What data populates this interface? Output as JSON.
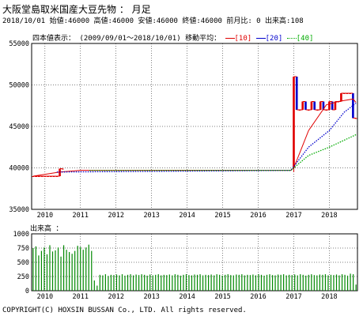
{
  "header": {
    "title": "大阪堂島取米国産大豆先物 ： 月足",
    "info": "2018/10/01 始値:46000 高値:46000 安値:46000 終値:46000 前月比: 0 出来高:108"
  },
  "legend": {
    "label": "四本値表示：",
    "period": "(2009/09/01～2018/10/01)",
    "ma_label": "移動平均：",
    "ma": [
      {
        "label": "[10]",
        "color": "#e00000"
      },
      {
        "label": "[20]",
        "color": "#0000cc"
      },
      {
        "label": "[40]",
        "color": "#00aa00"
      }
    ]
  },
  "volume_label": "出来高 ：",
  "copyright": "COPYRIGHT(C) HOXSIN BUSSAN Co., LTD. All rights reserved.",
  "colors": {
    "up": "#e00000",
    "down": "#0000cc",
    "ma10": "#e00000",
    "ma20": "#0000cc",
    "ma40": "#00aa00",
    "volume": "#008800",
    "grid": "#000000"
  },
  "chart_data": [
    {
      "type": "candlestick",
      "x_start": "2009-09",
      "x_end": "2018-10",
      "xticks": [
        "2010",
        "2011",
        "2012",
        "2013",
        "2014",
        "2015",
        "2016",
        "2017",
        "2018"
      ],
      "yticks": [
        "55000",
        "50000",
        "45000",
        "40000",
        "35000"
      ],
      "ylim": [
        35000,
        55000
      ],
      "grid": true,
      "candles": [
        {
          "date": "2009-09",
          "open": 39000,
          "high": 39000,
          "low": 39000,
          "close": 39000
        },
        {
          "date": "2009-10",
          "open": 39000,
          "high": 39000,
          "low": 39000,
          "close": 39000
        },
        {
          "date": "2009-11",
          "open": 39000,
          "high": 39000,
          "low": 39000,
          "close": 39000
        },
        {
          "date": "2009-12",
          "open": 39000,
          "high": 39000,
          "low": 39000,
          "close": 39000
        },
        {
          "date": "2010-01",
          "open": 39000,
          "high": 39000,
          "low": 39000,
          "close": 39000
        },
        {
          "date": "2010-02",
          "open": 39000,
          "high": 39000,
          "low": 39000,
          "close": 39000
        },
        {
          "date": "2010-03",
          "open": 39000,
          "high": 39000,
          "low": 39000,
          "close": 39000
        },
        {
          "date": "2010-04",
          "open": 39000,
          "high": 39000,
          "low": 39000,
          "close": 39000
        },
        {
          "date": "2010-05",
          "open": 39000,
          "high": 39000,
          "low": 39000,
          "close": 39000
        },
        {
          "date": "2010-06",
          "open": 39000,
          "high": 39900,
          "low": 39000,
          "close": 39900
        },
        {
          "date": "2010-07",
          "open": 39900,
          "high": 39900,
          "low": 39900,
          "close": 39900
        },
        {
          "date": "2017-01",
          "open": 40000,
          "high": 51000,
          "low": 39500,
          "close": 51000
        },
        {
          "date": "2017-02",
          "open": 51000,
          "high": 51000,
          "low": 47000,
          "close": 47000
        },
        {
          "date": "2017-03",
          "open": 47000,
          "high": 47000,
          "low": 47000,
          "close": 47000
        },
        {
          "date": "2017-04",
          "open": 47000,
          "high": 48000,
          "low": 47000,
          "close": 48000
        },
        {
          "date": "2017-05",
          "open": 48000,
          "high": 48000,
          "low": 47000,
          "close": 47000
        },
        {
          "date": "2017-06",
          "open": 47000,
          "high": 47000,
          "low": 47000,
          "close": 47000
        },
        {
          "date": "2017-07",
          "open": 47000,
          "high": 48000,
          "low": 47000,
          "close": 48000
        },
        {
          "date": "2017-08",
          "open": 48000,
          "high": 48000,
          "low": 47000,
          "close": 47000
        },
        {
          "date": "2017-09",
          "open": 47000,
          "high": 47000,
          "low": 47000,
          "close": 47000
        },
        {
          "date": "2017-10",
          "open": 47000,
          "high": 48000,
          "low": 47000,
          "close": 48000
        },
        {
          "date": "2017-11",
          "open": 48000,
          "high": 48000,
          "low": 47000,
          "close": 47000
        },
        {
          "date": "2017-12",
          "open": 47000,
          "high": 47000,
          "low": 47000,
          "close": 47000
        },
        {
          "date": "2018-01",
          "open": 47000,
          "high": 48000,
          "low": 47000,
          "close": 48000
        },
        {
          "date": "2018-02",
          "open": 48000,
          "high": 48000,
          "low": 47000,
          "close": 47000
        },
        {
          "date": "2018-03",
          "open": 47000,
          "high": 48000,
          "low": 47000,
          "close": 48000
        },
        {
          "date": "2018-04",
          "open": 48000,
          "high": 48000,
          "low": 48000,
          "close": 48000
        },
        {
          "date": "2018-05",
          "open": 48000,
          "high": 49000,
          "low": 48000,
          "close": 49000
        },
        {
          "date": "2018-06",
          "open": 49000,
          "high": 49000,
          "low": 49000,
          "close": 49000
        },
        {
          "date": "2018-07",
          "open": 49000,
          "high": 49000,
          "low": 49000,
          "close": 49000
        },
        {
          "date": "2018-08",
          "open": 49000,
          "high": 49000,
          "low": 49000,
          "close": 49000
        },
        {
          "date": "2018-09",
          "open": 49000,
          "high": 49000,
          "low": 46000,
          "close": 46000
        },
        {
          "date": "2018-10",
          "open": 46000,
          "high": 46000,
          "low": 46000,
          "close": 46000
        }
      ],
      "series": [
        {
          "name": "[10]",
          "type": "line",
          "style": "solid",
          "color": "#e00000",
          "points": [
            [
              "2009-09",
              39000
            ],
            [
              "2010-06",
              39500
            ],
            [
              "2011-01",
              39700
            ],
            [
              "2016-12",
              39700
            ],
            [
              "2017-01",
              40000
            ],
            [
              "2017-06",
              44500
            ],
            [
              "2017-12",
              47600
            ],
            [
              "2018-04",
              48000
            ],
            [
              "2018-09",
              48300
            ],
            [
              "2018-10",
              47900
            ]
          ]
        },
        {
          "name": "[20]",
          "type": "line",
          "style": "dotted",
          "color": "#0000cc",
          "points": [
            [
              "2010-05",
              39500
            ],
            [
              "2016-12",
              39700
            ],
            [
              "2017-06",
              42500
            ],
            [
              "2018-01",
              44500
            ],
            [
              "2018-06",
              46700
            ],
            [
              "2018-10",
              47800
            ]
          ]
        },
        {
          "name": "[40]",
          "type": "line",
          "style": "dotted",
          "color": "#00aa00",
          "points": [
            [
              "2011-04",
              39700
            ],
            [
              "2016-12",
              39700
            ],
            [
              "2017-06",
              41500
            ],
            [
              "2018-01",
              42500
            ],
            [
              "2018-10",
              44000
            ]
          ]
        }
      ]
    },
    {
      "type": "bar",
      "title": "出来高",
      "x_start": "2009-09",
      "x_end": "2018-10",
      "xticks": [
        "2010",
        "2011",
        "2012",
        "2013",
        "2014",
        "2015",
        "2016",
        "2017",
        "2018"
      ],
      "yticks": [
        "1000",
        "750",
        "500",
        "250",
        "0"
      ],
      "ylim": [
        0,
        1000
      ],
      "grid": true,
      "values": [
        750,
        780,
        620,
        700,
        760,
        640,
        800,
        690,
        710,
        760,
        600,
        800,
        720,
        680,
        650,
        700,
        790,
        770,
        720,
        760,
        810,
        700,
        180,
        90,
        280,
        270,
        290,
        260,
        280,
        275,
        285,
        270,
        290,
        265,
        280,
        290,
        270,
        285,
        275,
        290,
        280,
        265,
        285,
        270,
        280,
        290,
        270,
        280,
        275,
        285,
        270,
        290,
        280,
        265,
        280,
        290,
        275,
        270,
        285,
        280,
        290,
        270,
        280,
        275,
        285,
        270,
        290,
        280,
        265,
        280,
        290,
        275,
        270,
        285,
        280,
        290,
        270,
        280,
        275,
        285,
        270,
        290,
        280,
        265,
        280,
        290,
        275,
        270,
        285,
        280,
        290,
        270,
        280,
        275,
        285,
        270,
        290,
        280,
        265,
        280,
        290,
        275,
        270,
        285,
        280,
        290,
        270,
        280,
        275,
        285,
        270,
        290,
        280,
        265,
        300,
        290,
        108
      ]
    }
  ]
}
